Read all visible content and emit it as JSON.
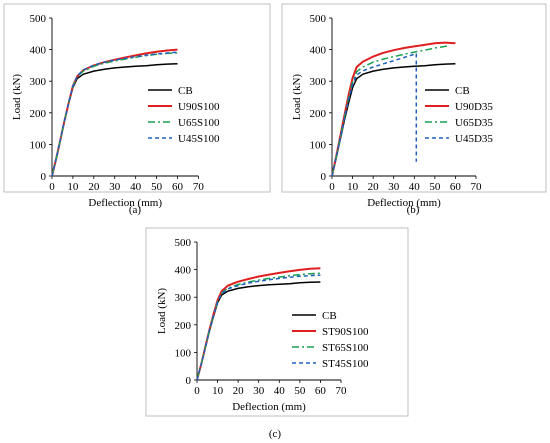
{
  "chart_data": [
    {
      "type": "line",
      "caption": "(a)",
      "xlabel": "Deflection (mm)",
      "ylabel": "Load (kN)",
      "xlim": [
        0,
        70
      ],
      "ylim": [
        0,
        500
      ],
      "xticks": [
        0,
        10,
        20,
        30,
        40,
        50,
        60,
        70
      ],
      "yticks": [
        0,
        100,
        200,
        300,
        400,
        500
      ],
      "legend_position": "right",
      "series": [
        {
          "name": "CB",
          "color": "#000000",
          "dash": "solid",
          "x": [
            0,
            2,
            4,
            6,
            8,
            10,
            12,
            15,
            20,
            25,
            30,
            35,
            40,
            45,
            50,
            55,
            60
          ],
          "y": [
            0,
            55,
            115,
            175,
            230,
            280,
            308,
            322,
            332,
            338,
            342,
            345,
            347,
            349,
            352,
            354,
            355
          ]
        },
        {
          "name": "U90S100",
          "color": "#e02020",
          "dash": "solid",
          "x": [
            0,
            2,
            4,
            6,
            8,
            10,
            12,
            15,
            20,
            25,
            30,
            35,
            40,
            45,
            50,
            55,
            60
          ],
          "y": [
            0,
            55,
            115,
            175,
            232,
            285,
            315,
            335,
            350,
            360,
            368,
            375,
            382,
            388,
            393,
            397,
            400
          ]
        },
        {
          "name": "U65S100",
          "color": "#1aa050",
          "dash": "dashdot",
          "x": [
            0,
            2,
            4,
            6,
            8,
            10,
            12,
            15,
            20,
            25,
            30,
            35,
            40,
            45,
            50,
            55,
            60
          ],
          "y": [
            0,
            55,
            115,
            175,
            232,
            284,
            314,
            332,
            347,
            357,
            364,
            370,
            376,
            381,
            385,
            388,
            390
          ]
        },
        {
          "name": "U45S100",
          "color": "#2060c0",
          "dash": "dash",
          "x": [
            0,
            2,
            4,
            6,
            8,
            10,
            12,
            15,
            20,
            25,
            30,
            35,
            40,
            45,
            50,
            55,
            60
          ],
          "y": [
            0,
            55,
            115,
            175,
            232,
            284,
            316,
            336,
            351,
            360,
            367,
            372,
            378,
            382,
            386,
            389,
            392
          ]
        }
      ]
    },
    {
      "type": "line",
      "caption": "(b)",
      "xlabel": "Deflection (mm)",
      "ylabel": "Load (kN)",
      "xlim": [
        0,
        70
      ],
      "ylim": [
        0,
        500
      ],
      "xticks": [
        0,
        10,
        20,
        30,
        40,
        50,
        60,
        70
      ],
      "yticks": [
        0,
        100,
        200,
        300,
        400,
        500
      ],
      "legend_position": "right",
      "series": [
        {
          "name": "CB",
          "color": "#000000",
          "dash": "solid",
          "x": [
            0,
            2,
            4,
            6,
            8,
            10,
            12,
            15,
            20,
            25,
            30,
            35,
            40,
            45,
            50,
            55,
            60
          ],
          "y": [
            0,
            55,
            115,
            175,
            230,
            280,
            308,
            322,
            332,
            338,
            342,
            345,
            347,
            349,
            352,
            354,
            355
          ]
        },
        {
          "name": "U90D35",
          "color": "#e02020",
          "dash": "solid",
          "x": [
            0,
            2,
            4,
            6,
            8,
            10,
            12,
            15,
            20,
            25,
            30,
            35,
            40,
            45,
            50,
            55,
            60
          ],
          "y": [
            0,
            60,
            125,
            190,
            255,
            310,
            345,
            362,
            378,
            390,
            398,
            405,
            410,
            415,
            420,
            422,
            420
          ]
        },
        {
          "name": "U65D35",
          "color": "#1aa050",
          "dash": "dashdot",
          "x": [
            0,
            2,
            4,
            6,
            8,
            10,
            12,
            15,
            20,
            25,
            30,
            35,
            40,
            45,
            50,
            55,
            57
          ],
          "y": [
            0,
            58,
            120,
            183,
            245,
            298,
            330,
            345,
            360,
            370,
            378,
            385,
            392,
            398,
            405,
            410,
            412
          ]
        },
        {
          "name": "U45D35",
          "color": "#2060c0",
          "dash": "dash",
          "x": [
            0,
            2,
            4,
            6,
            8,
            10,
            12,
            15,
            20,
            25,
            30,
            35,
            40,
            41,
            41
          ],
          "y": [
            0,
            57,
            118,
            180,
            240,
            290,
            320,
            333,
            345,
            355,
            365,
            375,
            385,
            388,
            45
          ]
        }
      ]
    },
    {
      "type": "line",
      "caption": "(c)",
      "xlabel": "Deflection (mm)",
      "ylabel": "Load (kN)",
      "xlim": [
        0,
        70
      ],
      "ylim": [
        0,
        500
      ],
      "xticks": [
        0,
        10,
        20,
        30,
        40,
        50,
        60,
        70
      ],
      "yticks": [
        0,
        100,
        200,
        300,
        400,
        500
      ],
      "legend_position": "right",
      "series": [
        {
          "name": "CB",
          "color": "#000000",
          "dash": "solid",
          "x": [
            0,
            2,
            4,
            6,
            8,
            10,
            12,
            15,
            20,
            25,
            30,
            35,
            40,
            45,
            50,
            55,
            60
          ],
          "y": [
            0,
            55,
            115,
            175,
            230,
            280,
            308,
            322,
            332,
            338,
            342,
            345,
            347,
            349,
            352,
            354,
            355
          ]
        },
        {
          "name": "ST90S100",
          "color": "#e02020",
          "dash": "solid",
          "x": [
            0,
            2,
            4,
            6,
            8,
            10,
            12,
            15,
            20,
            25,
            30,
            35,
            40,
            45,
            50,
            55,
            60
          ],
          "y": [
            0,
            55,
            118,
            180,
            238,
            290,
            322,
            342,
            356,
            366,
            375,
            382,
            388,
            394,
            399,
            403,
            405
          ]
        },
        {
          "name": "ST65S100",
          "color": "#1aa050",
          "dash": "dashdot",
          "x": [
            0,
            2,
            4,
            6,
            8,
            10,
            12,
            15,
            20,
            25,
            30,
            35,
            40,
            45,
            50,
            55,
            60
          ],
          "y": [
            0,
            55,
            116,
            178,
            234,
            285,
            316,
            333,
            346,
            355,
            362,
            368,
            373,
            378,
            382,
            385,
            387
          ]
        },
        {
          "name": "ST45S100",
          "color": "#2060c0",
          "dash": "dash",
          "x": [
            0,
            2,
            4,
            6,
            8,
            10,
            12,
            15,
            20,
            25,
            30,
            35,
            40,
            45,
            50,
            55,
            60
          ],
          "y": [
            0,
            55,
            115,
            177,
            233,
            283,
            313,
            330,
            342,
            351,
            358,
            363,
            368,
            372,
            376,
            378,
            380
          ]
        }
      ]
    }
  ]
}
